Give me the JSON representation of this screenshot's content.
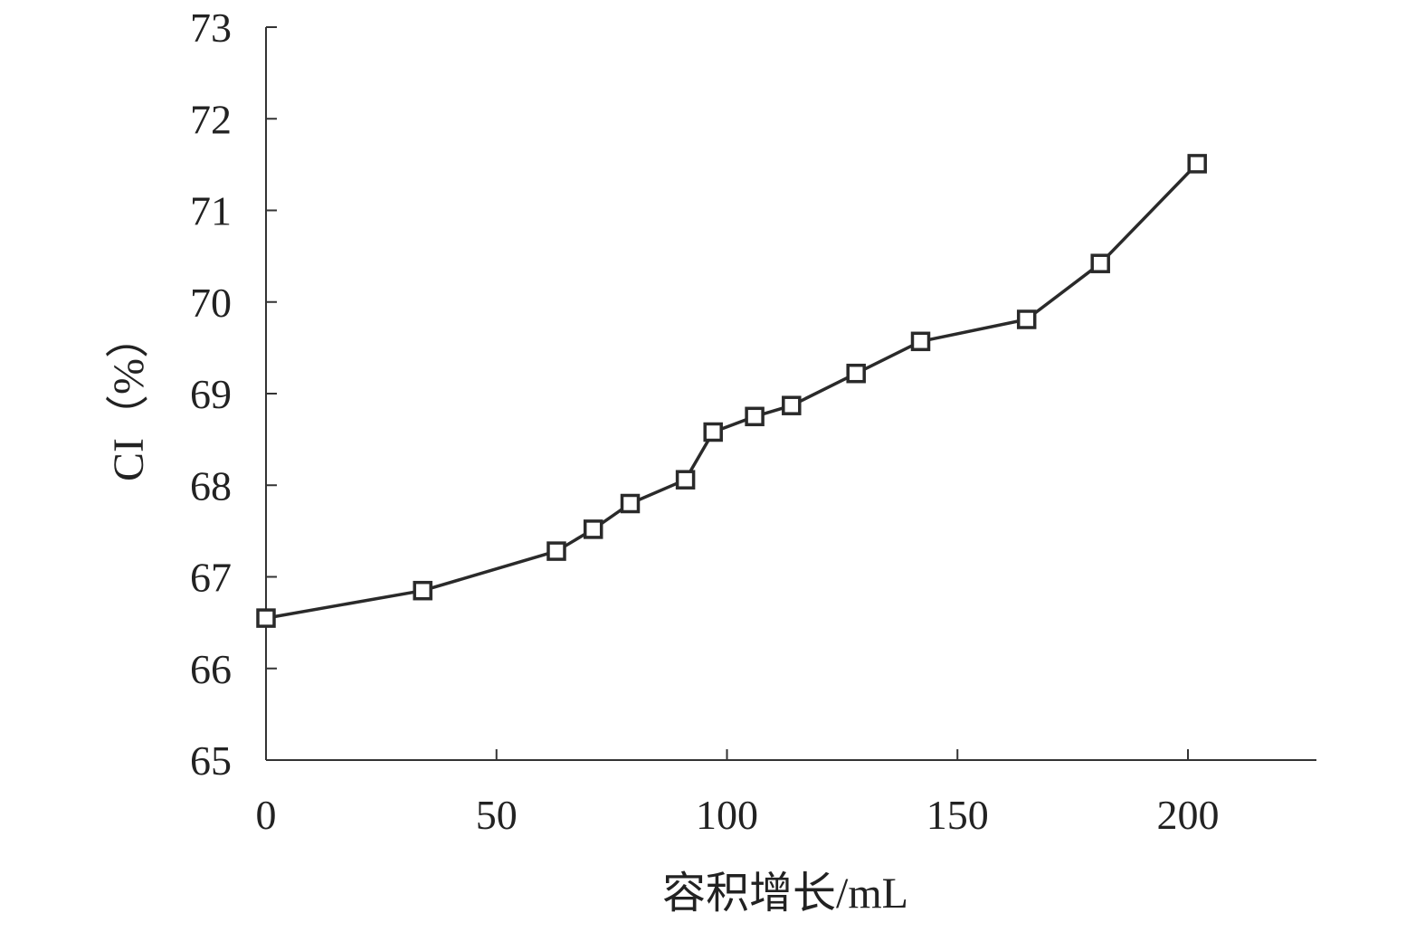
{
  "chart_data": {
    "type": "line",
    "title": "",
    "xlabel": "容积增长/mL",
    "ylabel": "CI（%）",
    "xlim": [
      0,
      225
    ],
    "ylim": [
      65,
      73
    ],
    "x_ticks": [
      0,
      50,
      100,
      150,
      200
    ],
    "y_ticks": [
      65,
      66,
      67,
      68,
      69,
      70,
      71,
      72,
      73
    ],
    "x_tick_labels": [
      "0",
      "50",
      "100",
      "150",
      "200"
    ],
    "y_tick_labels": [
      "65",
      "66",
      "67",
      "68",
      "69",
      "70",
      "71",
      "72",
      "73"
    ],
    "grid": false,
    "legend": "none",
    "marker": "square-open",
    "line_color": "#2a2a2a",
    "series": [
      {
        "points": [
          {
            "x": 0,
            "y": 66.55
          },
          {
            "x": 34,
            "y": 66.85
          },
          {
            "x": 63,
            "y": 67.28
          },
          {
            "x": 71,
            "y": 67.52
          },
          {
            "x": 79,
            "y": 67.8
          },
          {
            "x": 91,
            "y": 68.06
          },
          {
            "x": 97,
            "y": 68.58
          },
          {
            "x": 106,
            "y": 68.75
          },
          {
            "x": 114,
            "y": 68.87
          },
          {
            "x": 128,
            "y": 69.22
          },
          {
            "x": 142,
            "y": 69.57
          },
          {
            "x": 165,
            "y": 69.81
          },
          {
            "x": 181,
            "y": 70.42
          },
          {
            "x": 202,
            "y": 71.51
          }
        ]
      }
    ]
  }
}
